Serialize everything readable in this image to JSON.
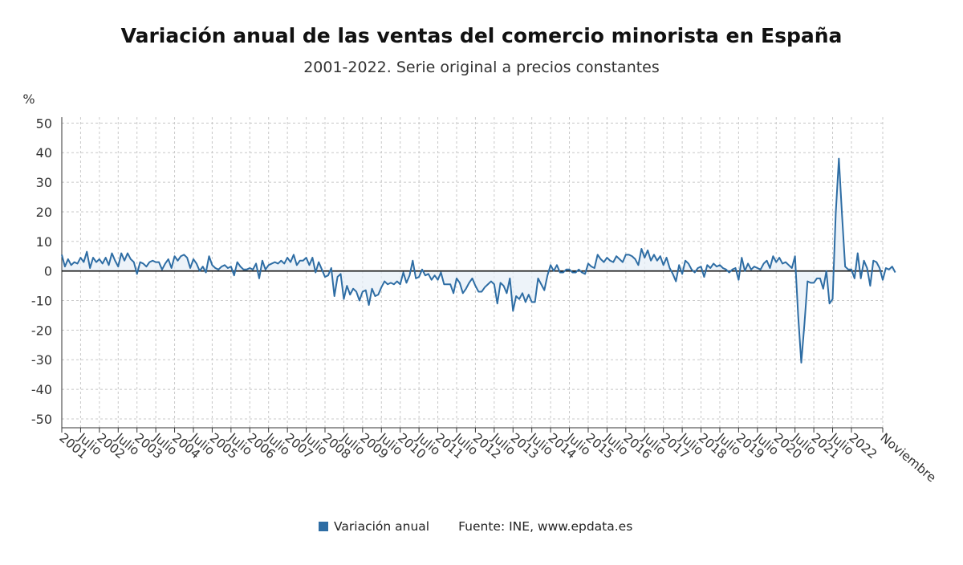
{
  "chart_data": {
    "type": "line",
    "title": "Variación anual de las ventas del comercio minorista en España",
    "subtitle": "2001-2022. Serie original a precios constantes",
    "ylabel": "%",
    "ylim": [
      -53,
      52
    ],
    "yticks": [
      50,
      40,
      30,
      20,
      10,
      0,
      -10,
      -20,
      -30,
      -40,
      -50
    ],
    "grid": true,
    "x_start": "2001-01",
    "x_end": "2022-11",
    "x_tick_labels": [
      {
        "month": "2001-01",
        "label": "2001"
      },
      {
        "month": "2001-07",
        "label": "Julio"
      },
      {
        "month": "2002-01",
        "label": "2002"
      },
      {
        "month": "2002-07",
        "label": "Julio"
      },
      {
        "month": "2003-01",
        "label": "2003"
      },
      {
        "month": "2003-07",
        "label": "Julio"
      },
      {
        "month": "2004-01",
        "label": "2004"
      },
      {
        "month": "2004-07",
        "label": "Julio"
      },
      {
        "month": "2005-01",
        "label": "2005"
      },
      {
        "month": "2005-07",
        "label": "Julio"
      },
      {
        "month": "2006-01",
        "label": "2006"
      },
      {
        "month": "2006-07",
        "label": "Julio"
      },
      {
        "month": "2007-01",
        "label": "2007"
      },
      {
        "month": "2007-07",
        "label": "Julio"
      },
      {
        "month": "2008-01",
        "label": "2008"
      },
      {
        "month": "2008-07",
        "label": "Julio"
      },
      {
        "month": "2009-01",
        "label": "2009"
      },
      {
        "month": "2009-07",
        "label": "Julio"
      },
      {
        "month": "2010-01",
        "label": "2010"
      },
      {
        "month": "2010-07",
        "label": "Julio"
      },
      {
        "month": "2011-01",
        "label": "2011"
      },
      {
        "month": "2011-07",
        "label": "Julio"
      },
      {
        "month": "2012-01",
        "label": "2012"
      },
      {
        "month": "2012-07",
        "label": "Julio"
      },
      {
        "month": "2013-01",
        "label": "2013"
      },
      {
        "month": "2013-07",
        "label": "Julio"
      },
      {
        "month": "2014-01",
        "label": "2014"
      },
      {
        "month": "2014-07",
        "label": "Julio"
      },
      {
        "month": "2015-01",
        "label": "2015"
      },
      {
        "month": "2015-07",
        "label": "Julio"
      },
      {
        "month": "2016-01",
        "label": "2016"
      },
      {
        "month": "2016-07",
        "label": "Julio"
      },
      {
        "month": "2017-01",
        "label": "2017"
      },
      {
        "month": "2017-07",
        "label": "Julio"
      },
      {
        "month": "2018-01",
        "label": "2018"
      },
      {
        "month": "2018-07",
        "label": "Julio"
      },
      {
        "month": "2019-01",
        "label": "2019"
      },
      {
        "month": "2019-07",
        "label": "Julio"
      },
      {
        "month": "2020-01",
        "label": "2020"
      },
      {
        "month": "2020-07",
        "label": "Julio"
      },
      {
        "month": "2021-01",
        "label": "2021"
      },
      {
        "month": "2021-07",
        "label": "Julio"
      },
      {
        "month": "2022-01",
        "label": "2022"
      },
      {
        "month": "2022-11",
        "label": "Noviembre"
      }
    ],
    "series": [
      {
        "name": "Variación anual",
        "color": "#2e6da4",
        "values": [
          5.5,
          1.5,
          4.0,
          2.0,
          3.0,
          2.5,
          4.5,
          3.0,
          6.5,
          1.0,
          4.5,
          3.0,
          4.0,
          2.5,
          4.5,
          2.0,
          6.0,
          3.5,
          1.5,
          6.0,
          3.5,
          6.0,
          4.0,
          3.0,
          -1.0,
          3.0,
          2.5,
          1.5,
          3.0,
          3.5,
          3.0,
          3.0,
          0.5,
          2.5,
          4.0,
          1.0,
          5.0,
          3.5,
          5.0,
          5.5,
          4.5,
          1.0,
          4.0,
          2.5,
          0.0,
          1.5,
          -0.5,
          5.0,
          2.0,
          1.0,
          0.5,
          1.5,
          2.0,
          1.0,
          1.5,
          -1.5,
          3.0,
          1.5,
          0.5,
          0.5,
          1.0,
          0.5,
          2.5,
          -2.5,
          3.5,
          0.5,
          2.0,
          2.5,
          3.0,
          2.5,
          3.5,
          2.5,
          4.5,
          3.0,
          5.5,
          2.0,
          3.5,
          3.5,
          4.5,
          2.0,
          4.5,
          -0.5,
          3.0,
          0.5,
          -2.0,
          -1.5,
          1.0,
          -8.5,
          -2.0,
          -1.0,
          -9.5,
          -5.0,
          -8.0,
          -6.0,
          -7.0,
          -10.0,
          -7.0,
          -6.5,
          -11.5,
          -6.0,
          -8.5,
          -8.0,
          -5.5,
          -3.5,
          -4.5,
          -4.0,
          -4.5,
          -3.5,
          -4.5,
          -0.5,
          -4.0,
          -1.5,
          3.5,
          -2.5,
          -2.0,
          0.5,
          -1.5,
          -1.0,
          -3.0,
          -1.5,
          -3.0,
          -0.5,
          -4.5,
          -4.5,
          -4.5,
          -7.5,
          -2.5,
          -4.0,
          -7.5,
          -6.0,
          -4.0,
          -2.5,
          -5.0,
          -7.0,
          -7.0,
          -5.5,
          -4.5,
          -3.5,
          -4.5,
          -11.0,
          -4.0,
          -5.0,
          -7.5,
          -2.5,
          -13.5,
          -8.5,
          -9.5,
          -7.5,
          -10.5,
          -8.0,
          -10.5,
          -10.5,
          -2.5,
          -4.5,
          -6.5,
          -1.5,
          2.0,
          0.0,
          2.0,
          -0.5,
          -0.5,
          0.5,
          0.5,
          -0.5,
          -0.5,
          0.5,
          -0.5,
          -1.0,
          2.5,
          1.5,
          1.0,
          5.5,
          4.0,
          3.0,
          4.5,
          3.5,
          3.0,
          5.0,
          4.0,
          3.0,
          5.5,
          5.5,
          5.0,
          4.0,
          2.0,
          7.5,
          4.5,
          7.0,
          3.5,
          5.5,
          3.5,
          5.0,
          2.0,
          4.5,
          1.0,
          -1.0,
          -3.5,
          2.0,
          -1.0,
          3.5,
          2.5,
          0.5,
          -0.5,
          1.0,
          1.5,
          -2.0,
          2.0,
          1.0,
          2.5,
          1.5,
          2.0,
          1.0,
          0.5,
          -0.5,
          0.5,
          1.0,
          -3.0,
          4.5,
          0.0,
          2.5,
          0.5,
          1.5,
          1.0,
          0.5,
          2.5,
          3.5,
          1.0,
          5.0,
          3.0,
          4.5,
          2.5,
          3.0,
          2.0,
          1.0,
          5.0,
          -15.0,
          -31.0,
          -18.0,
          -3.5,
          -4.0,
          -4.0,
          -2.5,
          -2.5,
          -6.0,
          0.0,
          -11.0,
          -9.5,
          19.5,
          38.0,
          19.0,
          1.5,
          0.5,
          0.5,
          -2.5,
          6.0,
          -2.5,
          3.5,
          1.0,
          -5.0,
          3.5,
          3.0,
          1.0,
          -3.0,
          1.0,
          0.5,
          1.5,
          -0.5
        ]
      }
    ],
    "legend": [
      {
        "label": "Variación anual",
        "color": "#2e6da4"
      }
    ],
    "legend_position": "bottom",
    "source": "Fuente: INE, www.epdata.es"
  }
}
